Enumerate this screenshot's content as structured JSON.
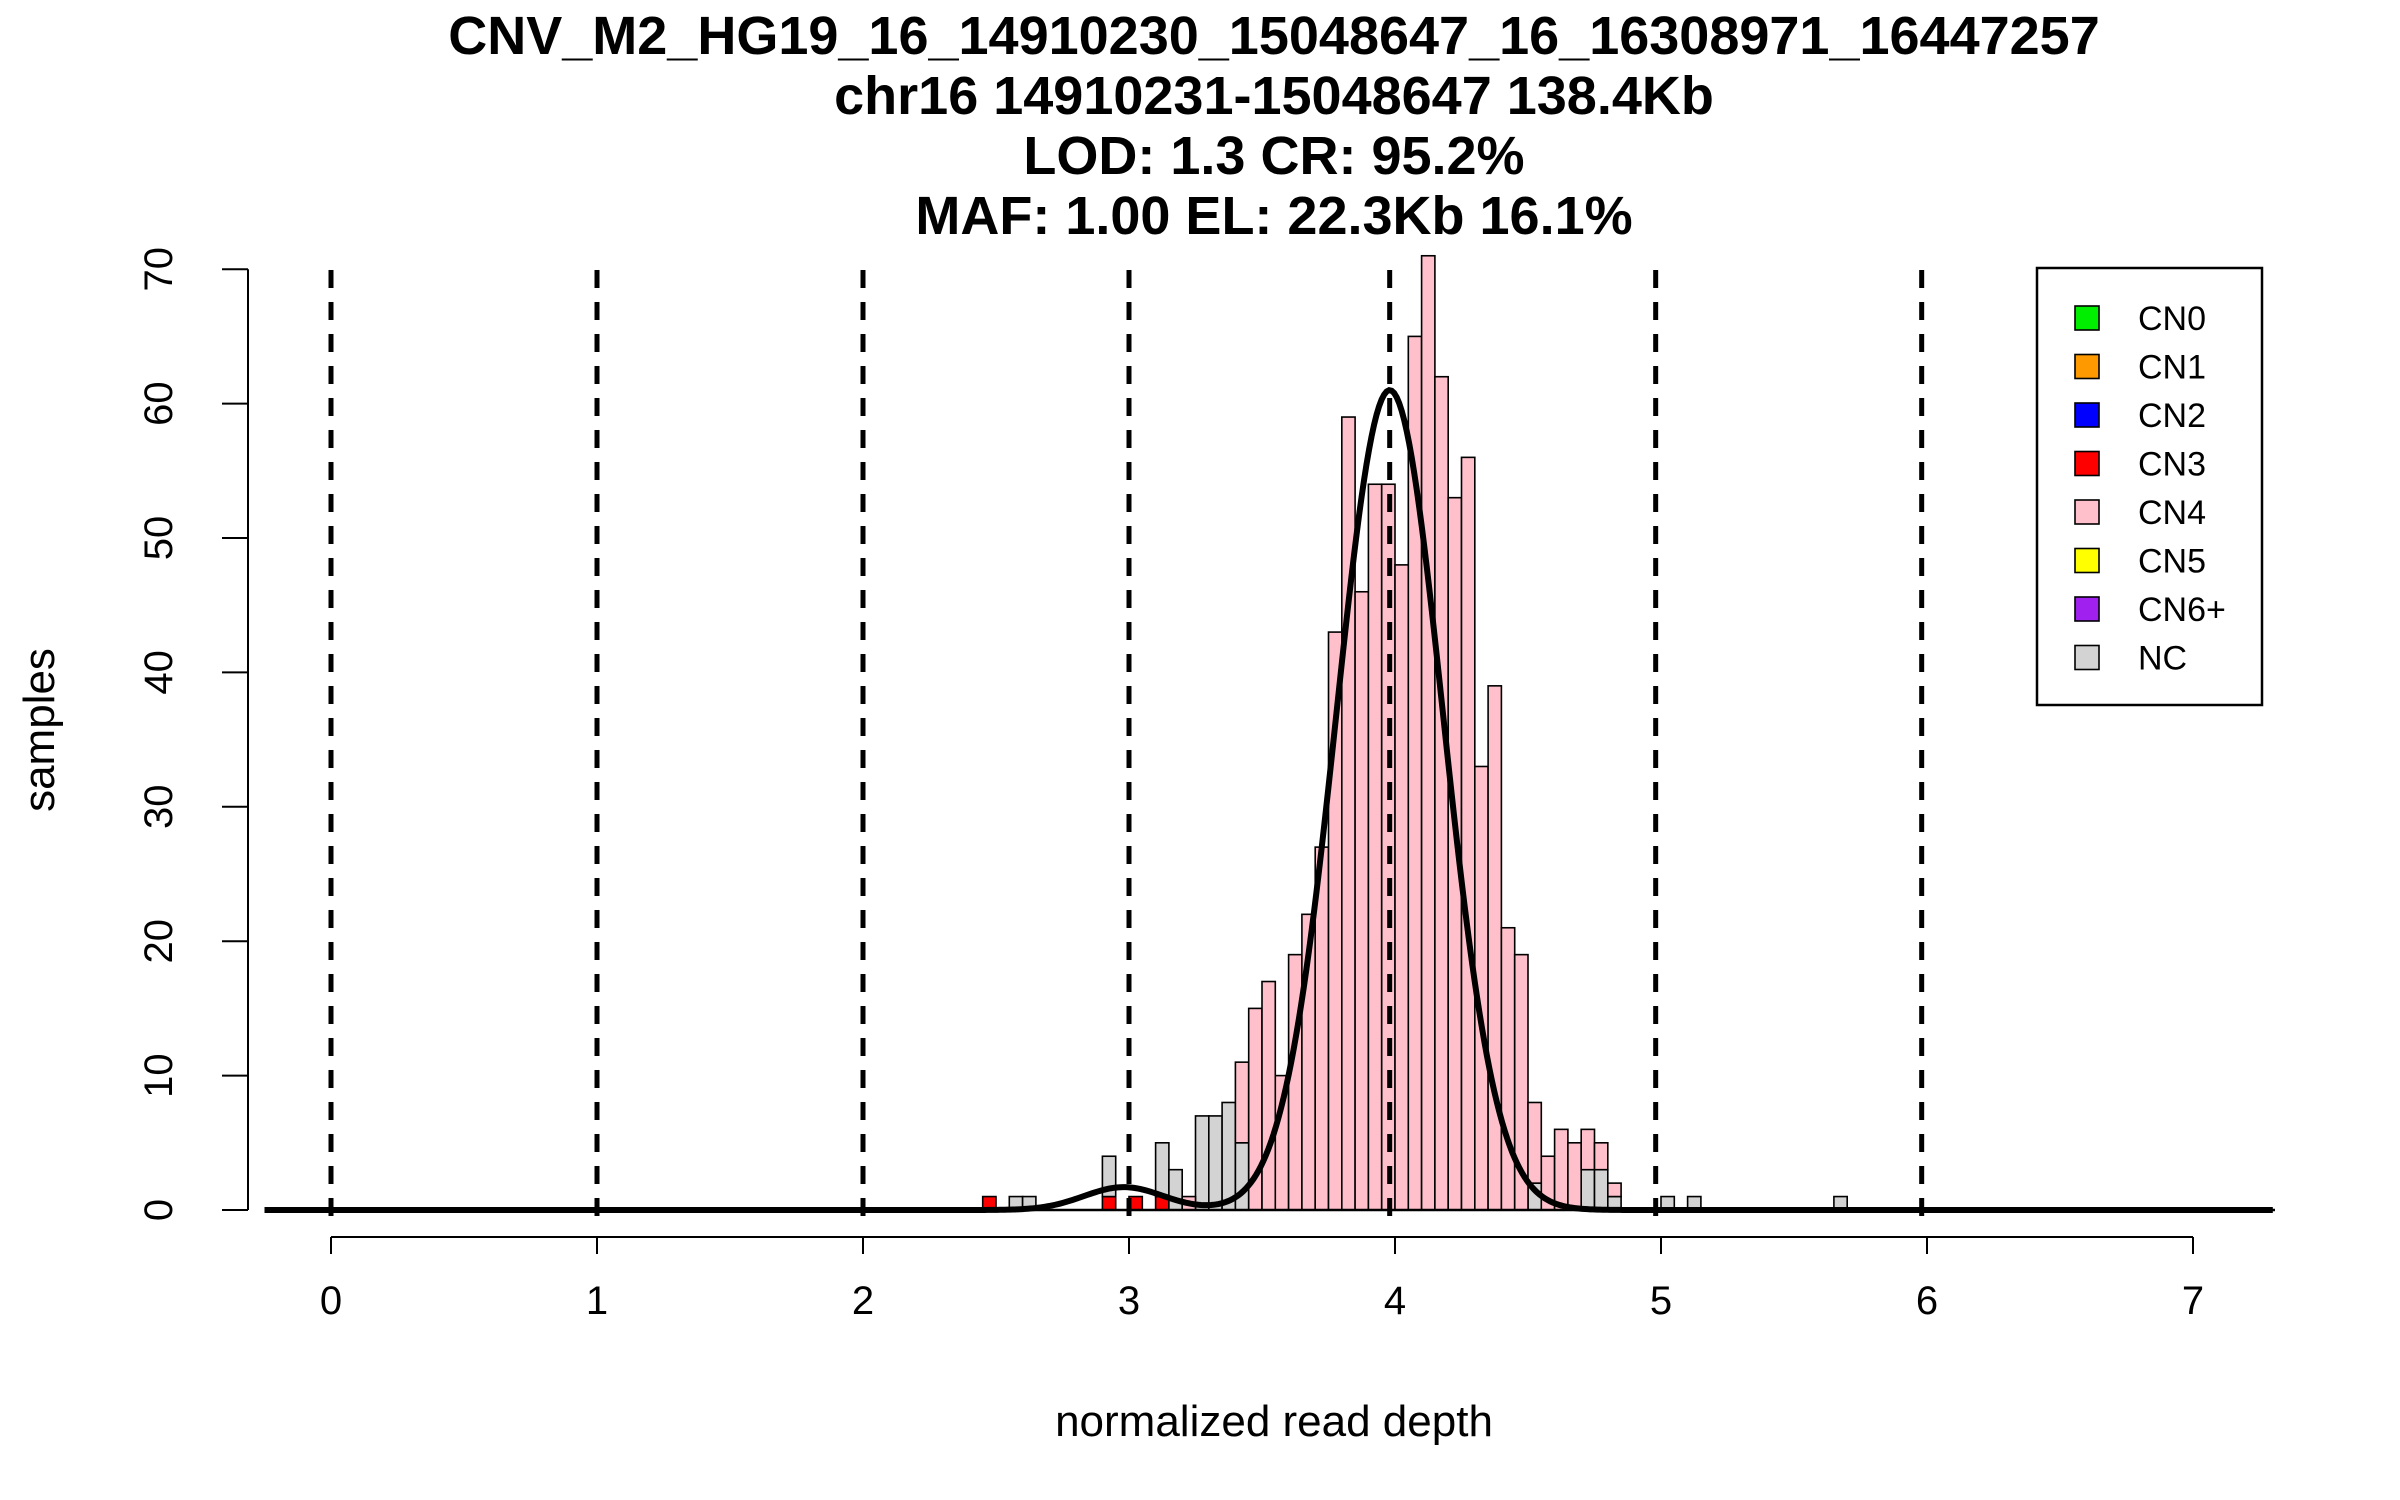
{
  "chart_data": {
    "type": "bar",
    "title_lines": [
      "CNV_M2_HG19_16_14910230_15048647_16_16308971_16447257",
      "chr16 14910231-15048647 138.4Kb",
      "LOD: 1.3 CR: 95.2%",
      "MAF: 1.00 EL: 22.3Kb 16.1%"
    ],
    "xlabel": "normalized read depth",
    "ylabel": "samples",
    "xlim": [
      -0.25,
      7.3
    ],
    "ylim": [
      0,
      70
    ],
    "x_ticks": [
      "0",
      "1",
      "2",
      "3",
      "4",
      "5",
      "6",
      "7"
    ],
    "y_ticks": [
      "0",
      "10",
      "20",
      "30",
      "40",
      "50",
      "60",
      "70"
    ],
    "bin_width": 0.05,
    "vlines": [
      0,
      1,
      2,
      3,
      3.98,
      4.98,
      5.98
    ],
    "legend": {
      "position": "top-right",
      "items": [
        {
          "label": "CN0",
          "color": "#00ee00"
        },
        {
          "label": "CN1",
          "color": "#ff9900"
        },
        {
          "label": "CN2",
          "color": "#0000ff"
        },
        {
          "label": "CN3",
          "color": "#ff0000"
        },
        {
          "label": "CN4",
          "color": "#ffc0cb"
        },
        {
          "label": "CN5",
          "color": "#ffff00"
        },
        {
          "label": "CN6+",
          "color": "#a020f0"
        },
        {
          "label": "NC",
          "color": "#d3d3d3"
        }
      ]
    },
    "series": [
      {
        "name": "CN3",
        "color": "#ff0000",
        "bins": [
          [
            2.45,
            1
          ],
          [
            2.9,
            1
          ],
          [
            3.0,
            1
          ],
          [
            3.1,
            1
          ]
        ]
      },
      {
        "name": "NC",
        "color": "#d3d3d3",
        "bins": [
          [
            2.55,
            1
          ],
          [
            2.6,
            1
          ],
          [
            2.9,
            3
          ],
          [
            3.1,
            4
          ],
          [
            3.15,
            3
          ],
          [
            3.25,
            7
          ],
          [
            3.3,
            7
          ],
          [
            3.35,
            8
          ],
          [
            3.4,
            5
          ],
          [
            4.5,
            2
          ],
          [
            4.7,
            3
          ],
          [
            4.75,
            3
          ],
          [
            4.8,
            1
          ],
          [
            5.0,
            1
          ],
          [
            5.1,
            1
          ],
          [
            5.65,
            1
          ]
        ]
      },
      {
        "name": "CN4",
        "color": "#ffc0cb",
        "bins": [
          [
            3.2,
            1
          ],
          [
            3.4,
            6
          ],
          [
            3.45,
            15
          ],
          [
            3.5,
            17
          ],
          [
            3.55,
            10
          ],
          [
            3.6,
            19
          ],
          [
            3.65,
            22
          ],
          [
            3.7,
            27
          ],
          [
            3.75,
            43
          ],
          [
            3.8,
            59
          ],
          [
            3.85,
            46
          ],
          [
            3.9,
            54
          ],
          [
            3.95,
            54
          ],
          [
            4.0,
            48
          ],
          [
            4.05,
            65
          ],
          [
            4.1,
            71
          ],
          [
            4.15,
            62
          ],
          [
            4.2,
            53
          ],
          [
            4.25,
            56
          ],
          [
            4.3,
            33
          ],
          [
            4.35,
            39
          ],
          [
            4.4,
            21
          ],
          [
            4.45,
            19
          ],
          [
            4.5,
            6
          ],
          [
            4.55,
            4
          ],
          [
            4.6,
            6
          ],
          [
            4.65,
            5
          ],
          [
            4.7,
            3
          ],
          [
            4.75,
            2
          ],
          [
            4.8,
            1
          ]
        ]
      }
    ],
    "fit_curves": [
      {
        "mean": 3.98,
        "sd": 0.2,
        "peak": 61
      },
      {
        "mean": 2.98,
        "sd": 0.15,
        "peak": 1.7
      }
    ]
  }
}
